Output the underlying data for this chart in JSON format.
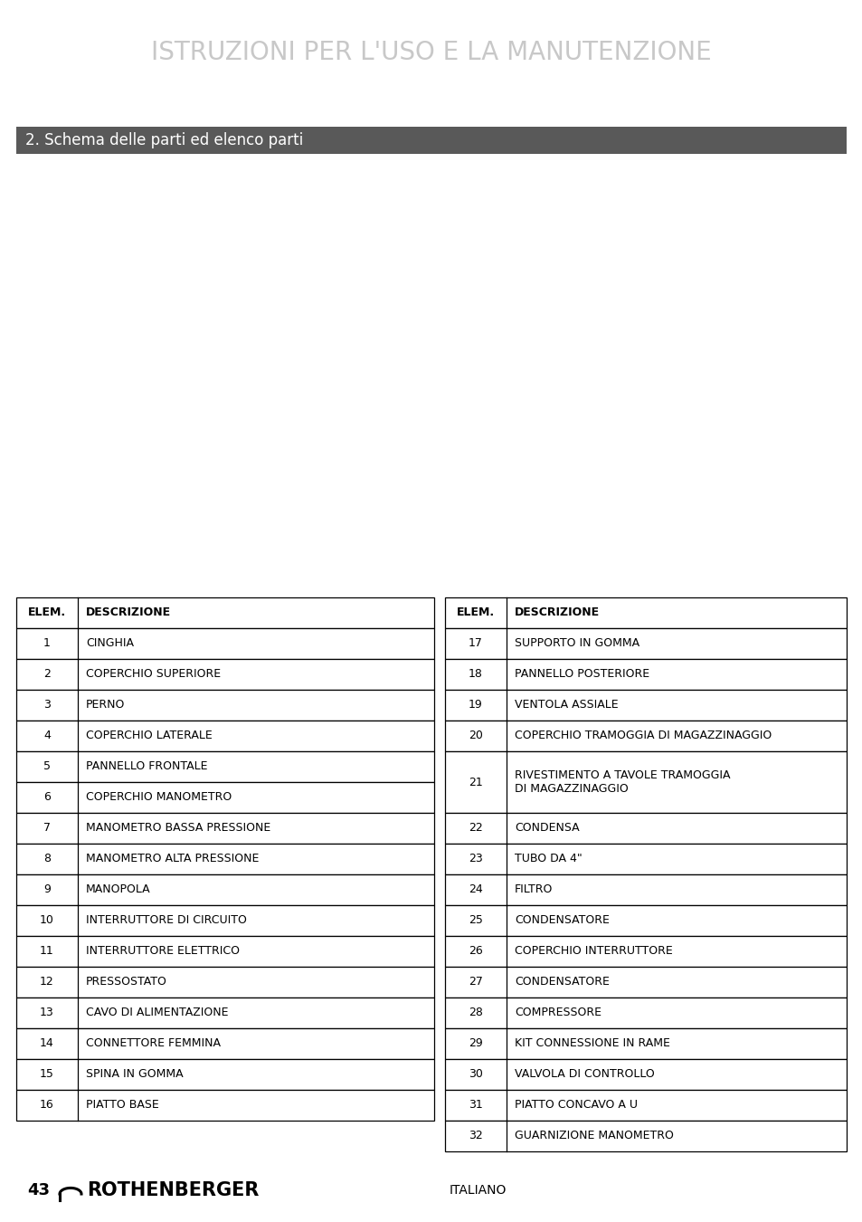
{
  "title": "ISTRUZIONI PER L'USO E LA MANUTENZIONE",
  "section_header": "2. Schema delle parti ed elenco parti",
  "section_header_bg": "#595959",
  "section_header_color": "#ffffff",
  "title_color": "#c8c8c8",
  "background_color": "#ffffff",
  "left_table": {
    "headers": [
      "ELEM.",
      "DESCRIZIONE"
    ],
    "rows": [
      [
        "1",
        "CINGHIA"
      ],
      [
        "2",
        "COPERCHIO SUPERIORE"
      ],
      [
        "3",
        "PERNO"
      ],
      [
        "4",
        "COPERCHIO LATERALE"
      ],
      [
        "5",
        "PANNELLO FRONTALE"
      ],
      [
        "6",
        "COPERCHIO MANOMETRO"
      ],
      [
        "7",
        "MANOMETRO BASSA PRESSIONE"
      ],
      [
        "8",
        "MANOMETRO ALTA PRESSIONE"
      ],
      [
        "9",
        "MANOPOLA"
      ],
      [
        "10",
        "INTERRUTTORE DI CIRCUITO"
      ],
      [
        "11",
        "INTERRUTTORE ELETTRICO"
      ],
      [
        "12",
        "PRESSOSTATO"
      ],
      [
        "13",
        "CAVO DI ALIMENTAZIONE"
      ],
      [
        "14",
        "CONNETTORE FEMMINA"
      ],
      [
        "15",
        "SPINA IN GOMMA"
      ],
      [
        "16",
        "PIATTO BASE"
      ]
    ]
  },
  "right_table": {
    "headers": [
      "ELEM.",
      "DESCRIZIONE"
    ],
    "rows": [
      [
        "17",
        "SUPPORTO IN GOMMA"
      ],
      [
        "18",
        "PANNELLO POSTERIORE"
      ],
      [
        "19",
        "VENTOLA ASSIALE"
      ],
      [
        "20",
        "COPERCHIO TRAMOGGIA DI MAGAZZINAGGIO"
      ],
      [
        "21",
        "RIVESTIMENTO A TAVOLE TRAMOGGIA\nDI MAGAZZINAGGIO"
      ],
      [
        "22",
        "CONDENSA"
      ],
      [
        "23",
        "TUBO DA 4\""
      ],
      [
        "24",
        "FILTRO"
      ],
      [
        "25",
        "CONDENSATORE"
      ],
      [
        "26",
        "COPERCHIO INTERRUTTORE"
      ],
      [
        "27",
        "CONDENSATORE"
      ],
      [
        "28",
        "COMPRESSORE"
      ],
      [
        "29",
        "KIT CONNESSIONE IN RAME"
      ],
      [
        "30",
        "VALVOLA DI CONTROLLO"
      ],
      [
        "31",
        "PIATTO CONCAVO A U"
      ],
      [
        "32",
        "GUARNIZIONE MANOMETRO"
      ]
    ]
  },
  "footer_page": "43",
  "footer_lang": "ITALIANO"
}
